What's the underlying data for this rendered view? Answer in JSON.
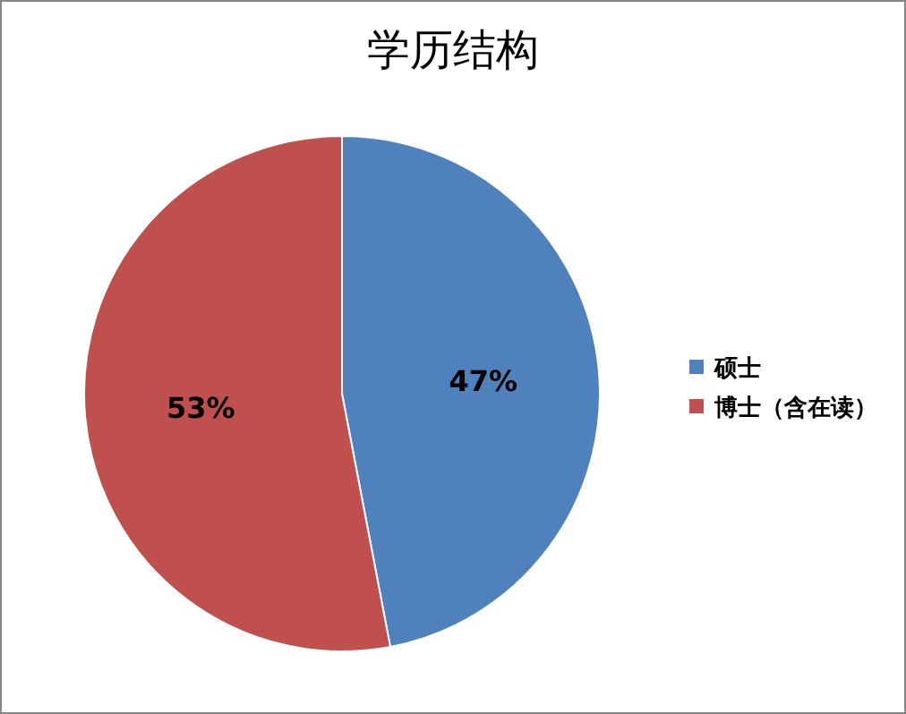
{
  "chart_data": {
    "type": "pie",
    "title": "学历结构",
    "categories": [
      "硕士",
      "博士（含在读）"
    ],
    "values": [
      47,
      53
    ],
    "colors": [
      "#4f81bd",
      "#c0504d"
    ],
    "value_labels": [
      "47%",
      "53%"
    ],
    "legend": "right"
  }
}
